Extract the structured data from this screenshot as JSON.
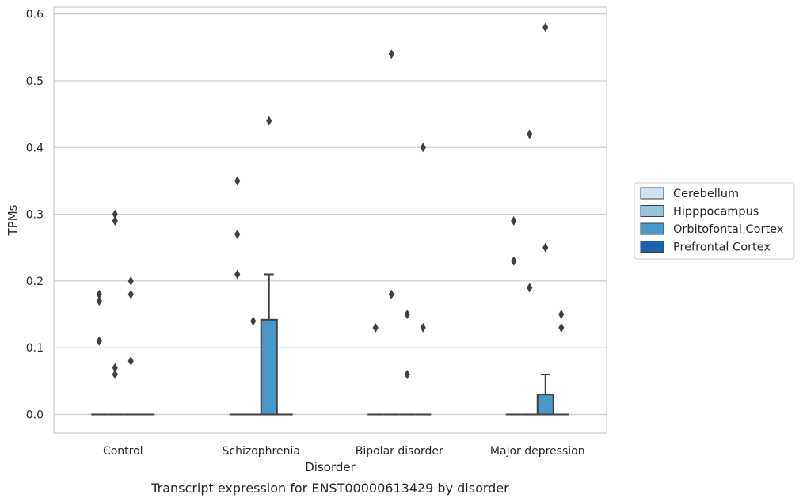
{
  "chart_data": {
    "type": "box",
    "title": "",
    "caption": "Transcript expression for ENST00000613429 by disorder",
    "xlabel": "Disorder",
    "ylabel": "TPMs",
    "ylim": [
      -0.03,
      0.612
    ],
    "yticks": [
      0.0,
      0.1,
      0.2,
      0.3,
      0.4,
      0.5,
      0.6
    ],
    "ytick_labels": [
      "0.0",
      "0.1",
      "0.2",
      "0.3",
      "0.4",
      "0.5",
      "0.6"
    ],
    "grid": "horizontal",
    "legend_position": "right",
    "categories": [
      "Control",
      "Schizophrenia",
      "Bipolar disorder",
      "Major depression"
    ],
    "series": [
      {
        "name": "Cerebellum",
        "color": "#d0e1f2",
        "boxes": [
          {
            "q1": 0,
            "median": 0,
            "q3": 0,
            "whisker_low": 0,
            "whisker_high": 0,
            "outliers": [
              0.18,
              0.17,
              0.11
            ]
          },
          {
            "q1": 0,
            "median": 0,
            "q3": 0,
            "whisker_low": 0,
            "whisker_high": 0,
            "outliers": [
              0.35,
              0.27,
              0.21
            ]
          },
          {
            "q1": 0,
            "median": 0,
            "q3": 0,
            "whisker_low": 0,
            "whisker_high": 0,
            "outliers": [
              0.13
            ]
          },
          {
            "q1": 0,
            "median": 0,
            "q3": 0,
            "whisker_low": 0,
            "whisker_high": 0,
            "outliers": [
              0.29,
              0.23
            ]
          }
        ]
      },
      {
        "name": "Hipppocampus",
        "color": "#94c4df",
        "boxes": [
          {
            "q1": 0,
            "median": 0,
            "q3": 0,
            "whisker_low": 0,
            "whisker_high": 0,
            "outliers": [
              0.3,
              0.29,
              0.07,
              0.06
            ]
          },
          {
            "q1": 0,
            "median": 0,
            "q3": 0,
            "whisker_low": 0,
            "whisker_high": 0,
            "outliers": [
              0.14
            ]
          },
          {
            "q1": 0,
            "median": 0,
            "q3": 0,
            "whisker_low": 0,
            "whisker_high": 0,
            "outliers": [
              0.54,
              0.18
            ]
          },
          {
            "q1": 0,
            "median": 0,
            "q3": 0,
            "whisker_low": 0,
            "whisker_high": 0,
            "outliers": [
              0.42,
              0.19
            ]
          }
        ]
      },
      {
        "name": "Orbitofontal Cortex",
        "color": "#4a98c9",
        "boxes": [
          {
            "q1": 0,
            "median": 0,
            "q3": 0,
            "whisker_low": 0,
            "whisker_high": 0,
            "outliers": [
              0.2,
              0.18,
              0.08
            ]
          },
          {
            "q1": 0,
            "median": 0,
            "q3": 0.142,
            "whisker_low": 0,
            "whisker_high": 0.21,
            "outliers": [
              0.44
            ]
          },
          {
            "q1": 0,
            "median": 0,
            "q3": 0,
            "whisker_low": 0,
            "whisker_high": 0,
            "outliers": [
              0.15,
              0.06
            ]
          },
          {
            "q1": 0,
            "median": 0,
            "q3": 0.03,
            "whisker_low": 0,
            "whisker_high": 0.06,
            "outliers": [
              0.58,
              0.25
            ]
          }
        ]
      },
      {
        "name": "Prefrontal Cortex",
        "color": "#1764ab",
        "boxes": [
          {
            "q1": 0,
            "median": 0,
            "q3": 0,
            "whisker_low": 0,
            "whisker_high": 0,
            "outliers": []
          },
          {
            "q1": 0,
            "median": 0,
            "q3": 0,
            "whisker_low": 0,
            "whisker_high": 0,
            "outliers": []
          },
          {
            "q1": 0,
            "median": 0,
            "q3": 0,
            "whisker_low": 0,
            "whisker_high": 0,
            "outliers": [
              0.4,
              0.13
            ]
          },
          {
            "q1": 0,
            "median": 0,
            "q3": 0,
            "whisker_low": 0,
            "whisker_high": 0,
            "outliers": [
              0.15,
              0.13
            ]
          }
        ]
      }
    ]
  }
}
